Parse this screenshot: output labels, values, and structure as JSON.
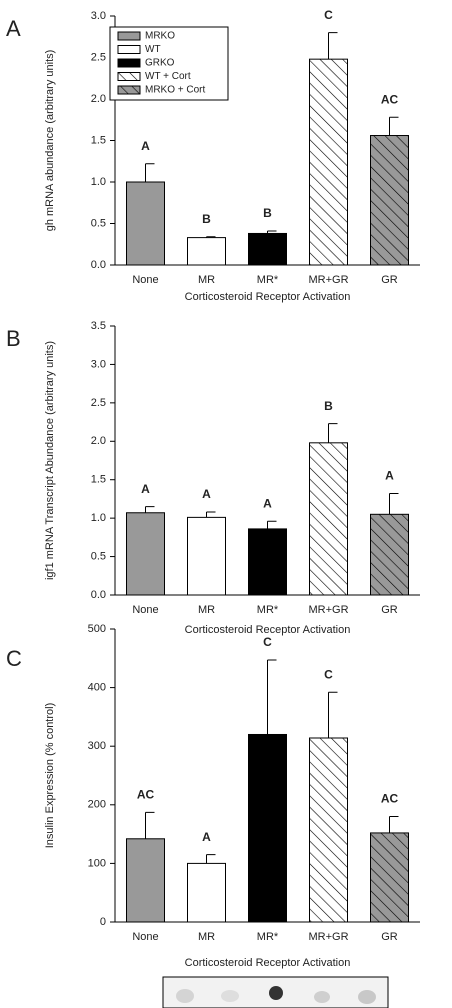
{
  "chart_data": [
    {
      "type": "bar",
      "panel": "A",
      "ylabel": "gh mRNA abundance (arbitrary units)",
      "xlabel": "Corticosteroid Receptor Activation",
      "categories": [
        "None",
        "MR",
        "MR*",
        "MR+GR",
        "GR"
      ],
      "values": [
        1.0,
        0.33,
        0.38,
        2.48,
        1.56
      ],
      "errors": [
        0.22,
        0.01,
        0.03,
        0.32,
        0.22
      ],
      "annotations": [
        "A",
        "B",
        "B",
        "C",
        "AC"
      ],
      "colors": [
        "#999999",
        "#ffffff",
        "#000000",
        "#ffffff",
        "#999999"
      ],
      "hatch": [
        false,
        false,
        false,
        true,
        true
      ],
      "ylim": [
        0,
        3.0
      ],
      "yticks": [
        {
          "value": 0,
          "label": "0.0"
        },
        0.5,
        {
          "value": 1,
          "label": "1.0"
        },
        1.5,
        {
          "value": 2,
          "label": "2.0"
        },
        2.5,
        {
          "value": 3,
          "label": "3.0"
        }
      ],
      "legend": {
        "labels": [
          "MRKO",
          "WT",
          "GRKO",
          "WT + Cort",
          "MRKO + Cort"
        ],
        "colors": [
          "#999999",
          "#ffffff",
          "#000000",
          "#ffffff",
          "#999999"
        ],
        "hatch": [
          false,
          false,
          false,
          true,
          true
        ]
      }
    },
    {
      "type": "bar",
      "panel": "B",
      "ylabel": "igf1 mRNA Transcript Abundance (arbitrary units)",
      "xlabel": "Corticosteroid Receptor Activation",
      "categories": [
        "None",
        "MR",
        "MR*",
        "MR+GR",
        "GR"
      ],
      "values": [
        1.07,
        1.01,
        0.86,
        1.98,
        1.05
      ],
      "errors": [
        0.08,
        0.07,
        0.1,
        0.25,
        0.27
      ],
      "annotations": [
        "A",
        "A",
        "A",
        "B",
        "A"
      ],
      "colors": [
        "#999999",
        "#ffffff",
        "#000000",
        "#ffffff",
        "#999999"
      ],
      "hatch": [
        false,
        false,
        false,
        true,
        true
      ],
      "ylim": [
        0,
        3.5
      ],
      "yticks": [
        {
          "value": 0,
          "label": "0.0"
        },
        0.5,
        {
          "value": 1,
          "label": "1.0"
        },
        1.5,
        {
          "value": 2,
          "label": "2.0"
        },
        2.5,
        {
          "value": 3,
          "label": "3.0"
        },
        3.5
      ]
    },
    {
      "type": "bar",
      "panel": "C",
      "ylabel": "Insulin Expression (% control)",
      "xlabel": "Corticosteroid Receptor Activation",
      "categories": [
        "None",
        "MR",
        "MR*",
        "MR+GR",
        "GR"
      ],
      "values": [
        142,
        100,
        320,
        314,
        152
      ],
      "errors": [
        45,
        15,
        127,
        78,
        28
      ],
      "annotations": [
        "AC",
        "A",
        "C",
        "C",
        "AC"
      ],
      "colors": [
        "#999999",
        "#ffffff",
        "#000000",
        "#ffffff",
        "#999999"
      ],
      "hatch": [
        false,
        false,
        false,
        true,
        true
      ],
      "ylim": [
        0,
        500
      ],
      "yticks": [
        0,
        100,
        200,
        300,
        400,
        500
      ]
    }
  ]
}
